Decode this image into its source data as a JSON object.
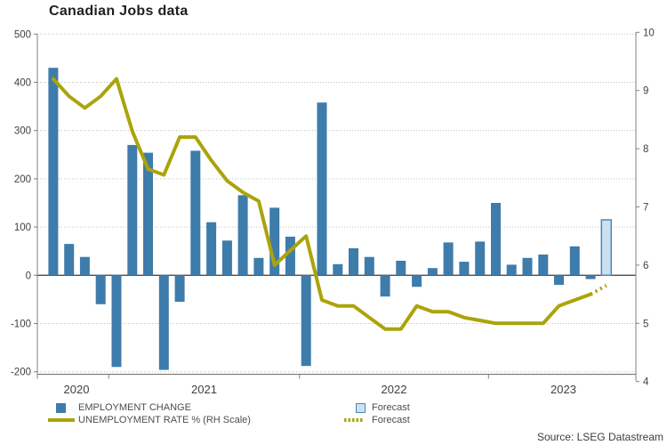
{
  "title": "Canadian Jobs data",
  "source": "Source: LSEG Datastream",
  "legend": {
    "employment": "EMPLOYMENT CHANGE",
    "unemployment": "UNEMPLOYMENT RATE % (RH Scale)",
    "forecast_bar": "Forecast",
    "forecast_line": "Forecast"
  },
  "colors": {
    "bar": "#3E7CAC",
    "line": "#AAA40A",
    "forecast_bar_fill": "#CCE0F0",
    "forecast_bar_border": "#4D87B5",
    "gridline": "#c0c0c0",
    "axis": "#808080",
    "zero_line": "#4d4d4d",
    "tick_label": "#404040"
  },
  "chart_data": {
    "type": "bar+line dual-axis monthly",
    "title": "Canadian Jobs data",
    "x": [
      "Sep 2020",
      "Oct 2020",
      "Nov 2020",
      "Dec 2020",
      "Jan 2021",
      "Feb 2021",
      "Mar 2021",
      "Apr 2021",
      "May 2021",
      "Jun 2021",
      "Jul 2021",
      "Aug 2021",
      "Sep 2021",
      "Oct 2021",
      "Nov 2021",
      "Dec 2021",
      "Jan 2022",
      "Feb 2022",
      "Mar 2022",
      "Apr 2022",
      "May 2022",
      "Jun 2022",
      "Jul 2022",
      "Aug 2022",
      "Sep 2022",
      "Oct 2022",
      "Nov 2022",
      "Dec 2022",
      "Jan 2023",
      "Feb 2023",
      "Mar 2023",
      "Apr 2023",
      "May 2023",
      "Jun 2023",
      "Jul 2023",
      "Aug 2023"
    ],
    "series": [
      {
        "name": "EMPLOYMENT CHANGE",
        "type": "bar",
        "axis": "left",
        "unit": "thousands",
        "forecast_points": 1,
        "values": [
          430,
          65,
          38,
          -60,
          -190,
          270,
          254,
          -196,
          -55,
          258,
          110,
          72,
          166,
          36,
          140,
          80,
          -188,
          358,
          23,
          56,
          38,
          -44,
          30,
          -24,
          15,
          68,
          28,
          70,
          150,
          22,
          36,
          43,
          -20,
          60,
          -8,
          115
        ]
      },
      {
        "name": "UNEMPLOYMENT RATE % (RH Scale)",
        "type": "line",
        "axis": "right",
        "unit": "%",
        "forecast_points": 1,
        "values": [
          9.2,
          8.9,
          8.7,
          8.9,
          9.2,
          8.3,
          7.65,
          7.55,
          8.2,
          8.2,
          7.8,
          7.45,
          7.25,
          7.1,
          6.0,
          6.25,
          6.5,
          5.4,
          5.3,
          5.3,
          5.1,
          4.9,
          4.9,
          5.3,
          5.2,
          5.2,
          5.1,
          5.05,
          5.0,
          5.0,
          5.0,
          5.0,
          5.3,
          5.4,
          5.5,
          5.65
        ]
      }
    ],
    "left_axis": {
      "label_values": [
        500,
        400,
        300,
        200,
        100,
        0,
        -100,
        -200
      ],
      "range": [
        -200,
        500
      ]
    },
    "right_axis": {
      "label_values": [
        10,
        9,
        8,
        7,
        6,
        5,
        4
      ],
      "range": [
        4,
        10
      ]
    },
    "x_axis": {
      "year_labels": [
        "2020",
        "2021",
        "2022",
        "2023"
      ]
    },
    "grid": "horizontal dotted at left-axis ticks",
    "legend_position": "bottom"
  }
}
